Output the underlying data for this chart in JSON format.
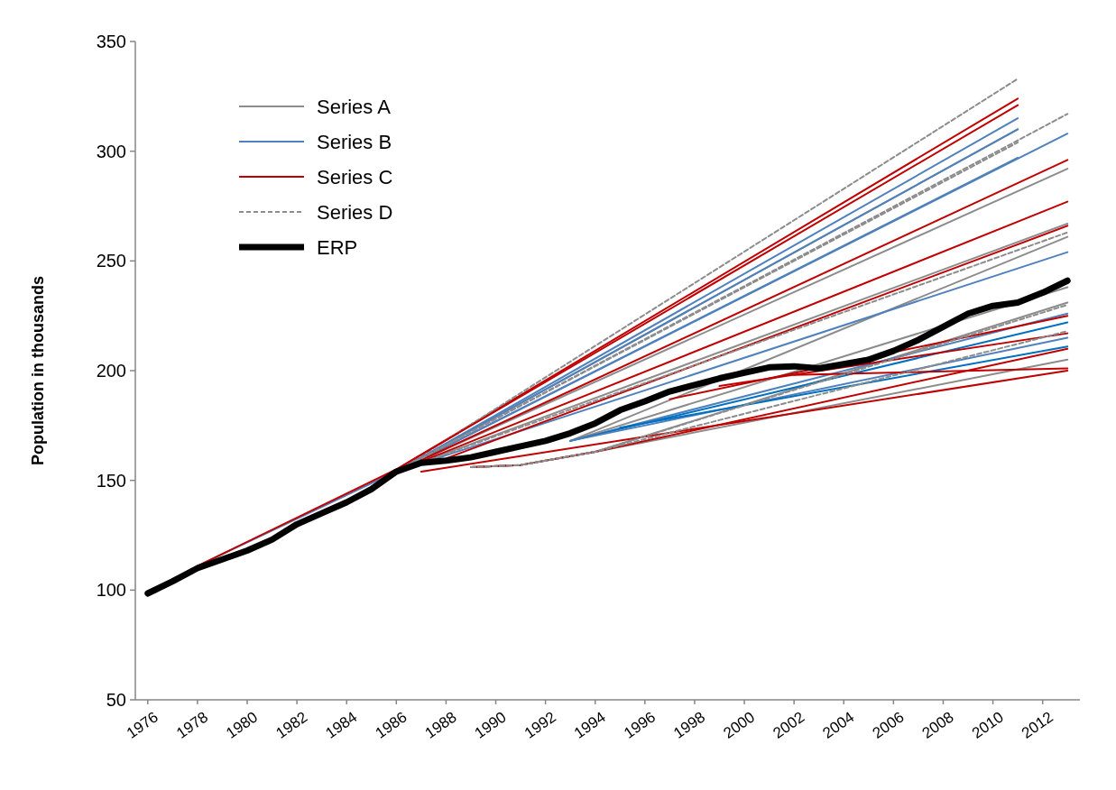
{
  "chart_data": {
    "type": "line",
    "ylabel": "Population in thousands",
    "xlim": [
      1975.5,
      2013.5
    ],
    "xticks": [
      1976,
      1978,
      1980,
      1982,
      1984,
      1986,
      1988,
      1990,
      1992,
      1994,
      1996,
      1998,
      2000,
      2002,
      2004,
      2006,
      2008,
      2010,
      2012
    ],
    "ylim": [
      50,
      350
    ],
    "yticks": [
      50,
      100,
      150,
      200,
      250,
      300,
      350
    ],
    "grid": false,
    "legend": "top left",
    "x": [
      1976,
      1977,
      1978,
      1979,
      1980,
      1981,
      1982,
      1983,
      1984,
      1985,
      1986,
      1987,
      1988,
      1989,
      1990,
      1991,
      1992,
      1993,
      1994,
      1995,
      1996,
      1997,
      1998,
      1999,
      2000,
      2001,
      2002,
      2003,
      2004,
      2005,
      2006,
      2007,
      2008,
      2009,
      2010,
      2011,
      2012,
      2013
    ],
    "series": [
      {
        "name": "Series A",
        "color": "#8c8c8c",
        "x": [
          1986,
          2011
        ],
        "values": [
          154,
          310
        ]
      },
      {
        "name": "Series B",
        "color": "#4f81bd",
        "x": [
          1978,
          1986,
          2011
        ],
        "values": [
          111,
          154,
          315
        ]
      },
      {
        "name": "Series C",
        "color": "#c00000",
        "x": [
          1978,
          1986,
          2011
        ],
        "values": [
          111,
          155,
          324
        ]
      },
      {
        "name": "Series D",
        "color": "#8c8c8c",
        "line_style": "dashed",
        "x": [
          1986,
          2011
        ],
        "values": [
          154,
          333
        ]
      },
      {
        "color": "#8c8c8c",
        "x": [
          1986,
          2013
        ],
        "values": [
          154,
          292
        ]
      },
      {
        "color": "#8c8c8c",
        "x": [
          1986,
          2013
        ],
        "values": [
          154,
          267
        ]
      },
      {
        "color": "#8c8c8c",
        "x": [
          1993,
          2013
        ],
        "values": [
          168,
          261
        ]
      },
      {
        "color": "#8c8c8c",
        "x": [
          1989,
          1991,
          1994,
          2013
        ],
        "values": [
          156,
          157,
          163,
          231
        ]
      },
      {
        "color": "#8c8c8c",
        "x": [
          1989,
          1991,
          1994,
          2013
        ],
        "values": [
          156,
          157,
          163,
          205
        ]
      },
      {
        "color": "#8c8c8c",
        "x": [
          1993,
          2013
        ],
        "values": [
          168,
          238
        ]
      },
      {
        "color": "#4f81bd",
        "x": [
          1986,
          2011
        ],
        "values": [
          154,
          310
        ]
      },
      {
        "color": "#4f81bd",
        "x": [
          1986,
          2011
        ],
        "values": [
          154,
          297
        ]
      },
      {
        "color": "#4f81bd",
        "x": [
          1986,
          2013
        ],
        "values": [
          154,
          308
        ]
      },
      {
        "color": "#4f81bd",
        "x": [
          1986,
          2013
        ],
        "values": [
          154,
          254
        ]
      },
      {
        "color": "#4f81bd",
        "x": [
          1993,
          2013
        ],
        "values": [
          168,
          226
        ]
      },
      {
        "color": "#0070c0",
        "x": [
          1993,
          2013
        ],
        "values": [
          168,
          222
        ]
      },
      {
        "color": "#4f81bd",
        "x": [
          1993,
          2013
        ],
        "values": [
          168,
          215
        ]
      },
      {
        "color": "#0070c0",
        "x": [
          1995,
          2013
        ],
        "values": [
          174,
          211
        ]
      },
      {
        "color": "#c00000",
        "x": [
          1986,
          2011
        ],
        "values": [
          155,
          321
        ]
      },
      {
        "color": "#c00000",
        "x": [
          1986,
          2013
        ],
        "values": [
          154,
          296
        ]
      },
      {
        "color": "#c00000",
        "x": [
          1986,
          2013
        ],
        "values": [
          154,
          277
        ]
      },
      {
        "color": "#c00000",
        "x": [
          1988,
          2013
        ],
        "values": [
          160,
          266
        ]
      },
      {
        "color": "#c00000",
        "x": [
          1997,
          2013
        ],
        "values": [
          187,
          225
        ]
      },
      {
        "color": "#c00000",
        "x": [
          1999,
          2013
        ],
        "values": [
          193,
          217
        ]
      },
      {
        "color": "#c00000",
        "x": [
          2002,
          2013
        ],
        "values": [
          198,
          201
        ]
      },
      {
        "color": "#c00000",
        "x": [
          1987,
          2013
        ],
        "values": [
          154,
          200
        ]
      },
      {
        "color": "#c00000",
        "x": [
          1989,
          1991,
          1994,
          2013
        ],
        "values": [
          156,
          157,
          163,
          210
        ]
      },
      {
        "color": "#8c8c8c",
        "line_style": "dashed",
        "x": [
          1986,
          2013
        ],
        "values": [
          154,
          317
        ]
      },
      {
        "color": "#8c8c8c",
        "line_style": "dashed",
        "x": [
          1986,
          2011
        ],
        "values": [
          154,
          304
        ]
      },
      {
        "color": "#8c8c8c",
        "line_style": "dashed",
        "x": [
          1986,
          2013
        ],
        "values": [
          154,
          263
        ]
      },
      {
        "color": "#8c8c8c",
        "line_style": "dashed",
        "x": [
          1989,
          1991,
          1994,
          2013
        ],
        "values": [
          156,
          157,
          163,
          230
        ]
      },
      {
        "color": "#8c8c8c",
        "line_style": "dashed",
        "x": [
          1989,
          1991,
          1994,
          2013
        ],
        "values": [
          156,
          157,
          163,
          218
        ]
      },
      {
        "name": "ERP",
        "color": "#000000",
        "values": [
          98.5,
          104,
          110,
          114,
          118,
          123,
          130,
          135,
          140,
          146,
          154,
          158,
          159,
          160.5,
          163,
          165.5,
          168,
          171.5,
          176,
          182,
          186,
          190.5,
          193.5,
          196.5,
          199,
          201.5,
          202,
          201,
          203,
          205,
          209,
          214,
          220,
          226,
          229.5,
          231,
          235.5,
          241
        ]
      }
    ]
  }
}
